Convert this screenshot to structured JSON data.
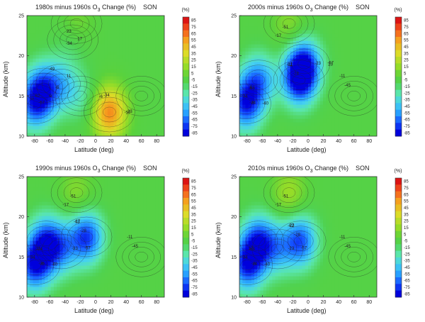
{
  "chart_data": [
    {
      "type": "heatmap",
      "title_pre": "1980s minus 1960s O",
      "title_sub": "3",
      "title_post": " Change (%)",
      "season": "SON",
      "xlabel": "Latitude (deg)",
      "ylabel": "Altitude (km)",
      "xlim": [
        -90,
        90
      ],
      "ylim": [
        10,
        25
      ],
      "xticks": [
        "-80",
        "-60",
        "-40",
        "-20",
        "0",
        "20",
        "40",
        "60",
        "80"
      ],
      "yticks": [
        "10",
        "15",
        "20",
        "25"
      ],
      "colorbar_title": "(%)",
      "colorbar_ticks": [
        "85",
        "75",
        "65",
        "55",
        "45",
        "35",
        "25",
        "15",
        "5",
        "-5",
        "-15",
        "-25",
        "-35",
        "-45",
        "-55",
        "-65",
        "-75",
        "-85"
      ],
      "centers": [
        {
          "lat": -80,
          "alt": 14,
          "v": -62
        },
        {
          "lat": -68,
          "alt": 16,
          "v": -57
        },
        {
          "lat": -45,
          "alt": 16.5,
          "v": -34
        },
        {
          "lat": -20,
          "alt": 15,
          "v": -23
        },
        {
          "lat": -30,
          "alt": 22,
          "v": -17
        },
        {
          "lat": -25,
          "alt": 24,
          "v": 11
        },
        {
          "lat": 18,
          "alt": 13,
          "v": 60
        },
        {
          "lat": 60,
          "alt": 15,
          "v": -5
        }
      ],
      "labels": [
        "-57",
        "-62",
        "-49",
        "-34",
        "-34",
        "-27",
        "-23",
        "-17",
        "-11",
        "-5",
        "0",
        "11",
        "17",
        "23",
        "-6",
        "17"
      ]
    },
    {
      "type": "heatmap",
      "title_pre": "2000s minus 1960s O",
      "title_sub": "3",
      "title_post": " Change (%)",
      "season": "SON",
      "xlabel": "Latitude (deg)",
      "ylabel": "Altitude (km)",
      "xlim": [
        -90,
        90
      ],
      "ylim": [
        10,
        25
      ],
      "xticks": [
        "-80",
        "-60",
        "-40",
        "-20",
        "0",
        "20",
        "40",
        "60",
        "80"
      ],
      "yticks": [
        "10",
        "15",
        "20",
        "25"
      ],
      "colorbar_title": "(%)",
      "colorbar_ticks": [
        "85",
        "75",
        "65",
        "55",
        "45",
        "35",
        "25",
        "15",
        "5",
        "-5",
        "-15",
        "-25",
        "-35",
        "-45",
        "-55",
        "-65",
        "-75",
        "-85"
      ],
      "centers": [
        {
          "lat": -82,
          "alt": 14,
          "v": -74
        },
        {
          "lat": -65,
          "alt": 17,
          "v": -57
        },
        {
          "lat": -12,
          "alt": 17,
          "v": -74
        },
        {
          "lat": -5,
          "alt": 19,
          "v": -68
        },
        {
          "lat": -25,
          "alt": 24,
          "v": 11
        },
        {
          "lat": 60,
          "alt": 15,
          "v": -5
        }
      ],
      "labels": [
        "-74",
        "-68",
        "-62",
        "-57",
        "-51",
        "-45",
        "-40",
        "-34",
        "-28",
        "-23",
        "-17",
        "-11",
        "-6",
        "0",
        "11",
        "23"
      ]
    },
    {
      "type": "heatmap",
      "title_pre": "1990s minus 1960s O",
      "title_sub": "3",
      "title_post": " Change (%)",
      "season": "SON",
      "xlabel": "Latitude (deg)",
      "ylabel": "Altitude (km)",
      "xlim": [
        -90,
        90
      ],
      "ylim": [
        10,
        25
      ],
      "xticks": [
        "-80",
        "-60",
        "-40",
        "-20",
        "0",
        "20",
        "40",
        "60",
        "80"
      ],
      "yticks": [
        "10",
        "15",
        "20",
        "25"
      ],
      "colorbar_title": "(%)",
      "colorbar_ticks": [
        "85",
        "75",
        "65",
        "55",
        "45",
        "35",
        "25",
        "15",
        "5",
        "-5",
        "-15",
        "-25",
        "-35",
        "-45",
        "-55",
        "-65",
        "-75",
        "-85"
      ],
      "centers": [
        {
          "lat": -80,
          "alt": 14,
          "v": -76
        },
        {
          "lat": -65,
          "alt": 17,
          "v": -63
        },
        {
          "lat": -12,
          "alt": 17.5,
          "v": -74
        },
        {
          "lat": -45,
          "alt": 16,
          "v": -45
        },
        {
          "lat": -25,
          "alt": 23,
          "v": 11
        },
        {
          "lat": 60,
          "alt": 15,
          "v": -5
        }
      ],
      "labels": [
        "-76",
        "-74",
        "-63",
        "-57",
        "-51",
        "-45",
        "-40",
        "-34",
        "-28",
        "-23",
        "-17",
        "-11",
        "-6",
        "11",
        "17"
      ]
    },
    {
      "type": "heatmap",
      "title_pre": "2010s minus 1960s O",
      "title_sub": "3",
      "title_post": " Change (%)",
      "season": "SON",
      "xlabel": "Latitude (deg)",
      "ylabel": "Altitude (km)",
      "xlim": [
        -90,
        90
      ],
      "ylim": [
        10,
        25
      ],
      "xticks": [
        "-80",
        "-60",
        "-40",
        "-20",
        "0",
        "20",
        "40",
        "60",
        "80"
      ],
      "yticks": [
        "10",
        "15",
        "20",
        "25"
      ],
      "colorbar_title": "(%)",
      "colorbar_ticks": [
        "85",
        "75",
        "65",
        "55",
        "45",
        "35",
        "25",
        "15",
        "5",
        "-5",
        "-15",
        "-25",
        "-35",
        "-45",
        "-55",
        "-65",
        "-75",
        "-85"
      ],
      "centers": [
        {
          "lat": -80,
          "alt": 14,
          "v": -74
        },
        {
          "lat": -65,
          "alt": 17,
          "v": -68
        },
        {
          "lat": -10,
          "alt": 17,
          "v": -68
        },
        {
          "lat": -40,
          "alt": 16,
          "v": -40
        },
        {
          "lat": -25,
          "alt": 23,
          "v": 17
        },
        {
          "lat": 60,
          "alt": 15,
          "v": -5
        }
      ],
      "labels": [
        "-74",
        "-68",
        "-62",
        "-57",
        "-51",
        "-45",
        "-40",
        "-34",
        "-28",
        "-23",
        "-17",
        "-11",
        "-6",
        "17",
        "23"
      ]
    }
  ]
}
